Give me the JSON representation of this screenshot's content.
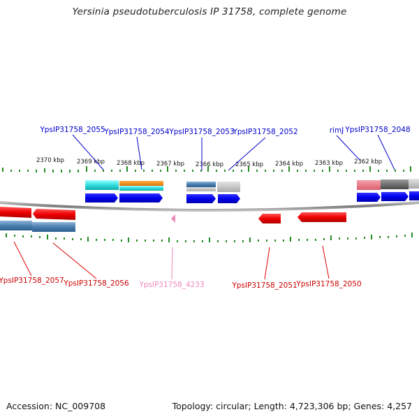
{
  "title": "Yersinia pseudotuberculosis IP 31758, complete genome",
  "footer": {
    "accession": "Accession: NC_009708",
    "topology": "Topology: circular; Length: 4,723,306 bp; Genes: 4,257"
  },
  "scale": {
    "labels": [
      "2370 kbp",
      "2369 kbp",
      "2368 kbp",
      "2367 kbp",
      "2366 kbp",
      "2365 kbp",
      "2364 kbp",
      "2363 kbp",
      "2362 kbp"
    ]
  },
  "colors": {
    "forward_gene": "#0000ee",
    "reverse_gene": "#ee0000",
    "pseudo_gene": "#ee88bb",
    "backbone": "#888888",
    "tick": "#228b22"
  },
  "top_labels": [
    "YpsIP31758_2055",
    "YpsIP31758_2054",
    "YpsIP31758_2053",
    "YpsIP31758_2052",
    "rimJ",
    "YpsIP31758_2048"
  ],
  "bottom_labels": [
    "YpsIP31758_2057",
    "YpsIP31758_2056",
    "YpsIP31758_4233",
    "YpsIP31758_2051",
    "YpsIP31758_2050"
  ]
}
